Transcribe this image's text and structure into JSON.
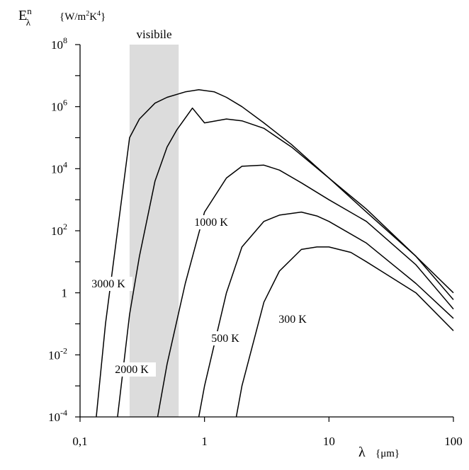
{
  "chart_data": {
    "type": "line",
    "x_scale": "log",
    "y_scale": "log",
    "xlim": [
      0.1,
      100
    ],
    "ylim": [
      0.0001,
      100000000
    ],
    "xlabel": {
      "main": "λ",
      "unit": "{μm}"
    },
    "ylabel": {
      "main": "E",
      "sup": "n",
      "sub": "λ",
      "unit_pre": "{W/m",
      "unit_sup1": "2",
      "unit_mid": "K",
      "unit_sup2": "4",
      "unit_post": "}"
    },
    "x_ticks": [
      {
        "value": 0.1,
        "label": "0,1"
      },
      {
        "value": 1,
        "label": "1"
      },
      {
        "value": 10,
        "label": "10"
      },
      {
        "value": 100,
        "label": "100"
      }
    ],
    "y_ticks": [
      {
        "value": 0.0001,
        "base": "10",
        "exp": "-4"
      },
      {
        "value": 0.01,
        "base": "10",
        "exp": "-2"
      },
      {
        "value": 1,
        "base": "1",
        "exp": ""
      },
      {
        "value": 100,
        "base": "10",
        "exp": "2"
      },
      {
        "value": 10000,
        "base": "10",
        "exp": "4"
      },
      {
        "value": 1000000,
        "base": "10",
        "exp": "6"
      },
      {
        "value": 100000000,
        "base": "10",
        "exp": "8"
      }
    ],
    "visible_band": {
      "label": "visibile",
      "x_range": [
        0.25,
        0.62
      ],
      "color": "#dcdcdc"
    },
    "grid": false,
    "series": [
      {
        "name": "3000 K",
        "x": [
          0.135,
          0.16,
          0.2,
          0.25,
          0.3,
          0.4,
          0.5,
          0.7,
          0.9,
          1.2,
          1.5,
          2,
          3,
          5,
          10,
          20,
          50,
          100
        ],
        "y": [
          0.0001,
          0.1,
          100,
          100000,
          400000,
          1300000,
          2000000,
          3000000,
          3500000,
          3000000,
          2000000,
          1000000,
          300000,
          60000,
          5000,
          400,
          15,
          1
        ]
      },
      {
        "name": "2000 K",
        "x": [
          0.2,
          0.25,
          0.3,
          0.4,
          0.5,
          0.6,
          0.8,
          1,
          1.5,
          2,
          3,
          5,
          10,
          20,
          50,
          100
        ],
        "y": [
          0.0001,
          0.2,
          15,
          4000,
          50000,
          180000,
          900000,
          300000,
          400000,
          350000,
          200000,
          50000,
          5000,
          500,
          15,
          0.6
        ]
      },
      {
        "name": "1000 K",
        "x": [
          0.42,
          0.5,
          0.7,
          1,
          1.5,
          2,
          3,
          4,
          6,
          10,
          20,
          50,
          100
        ],
        "y": [
          0.0001,
          0.005,
          2,
          400,
          5000,
          12000,
          13000,
          9000,
          3500,
          1000,
          200,
          8,
          0.3
        ]
      },
      {
        "name": "500 K",
        "x": [
          0.9,
          1,
          1.5,
          2,
          3,
          4,
          6,
          8,
          10,
          20,
          50,
          100
        ],
        "y": [
          0.0001,
          0.001,
          1,
          30,
          200,
          320,
          400,
          300,
          200,
          40,
          2,
          0.15
        ]
      },
      {
        "name": "300 K",
        "x": [
          1.8,
          2,
          3,
          4,
          6,
          8,
          10,
          15,
          20,
          50,
          100
        ],
        "y": [
          0.0001,
          0.001,
          0.5,
          5,
          25,
          30,
          30,
          20,
          10,
          1,
          0.06
        ]
      }
    ],
    "curve_labels": [
      "3000 K",
      "2000 K",
      "1000 K",
      "500 K",
      "300 K"
    ]
  }
}
